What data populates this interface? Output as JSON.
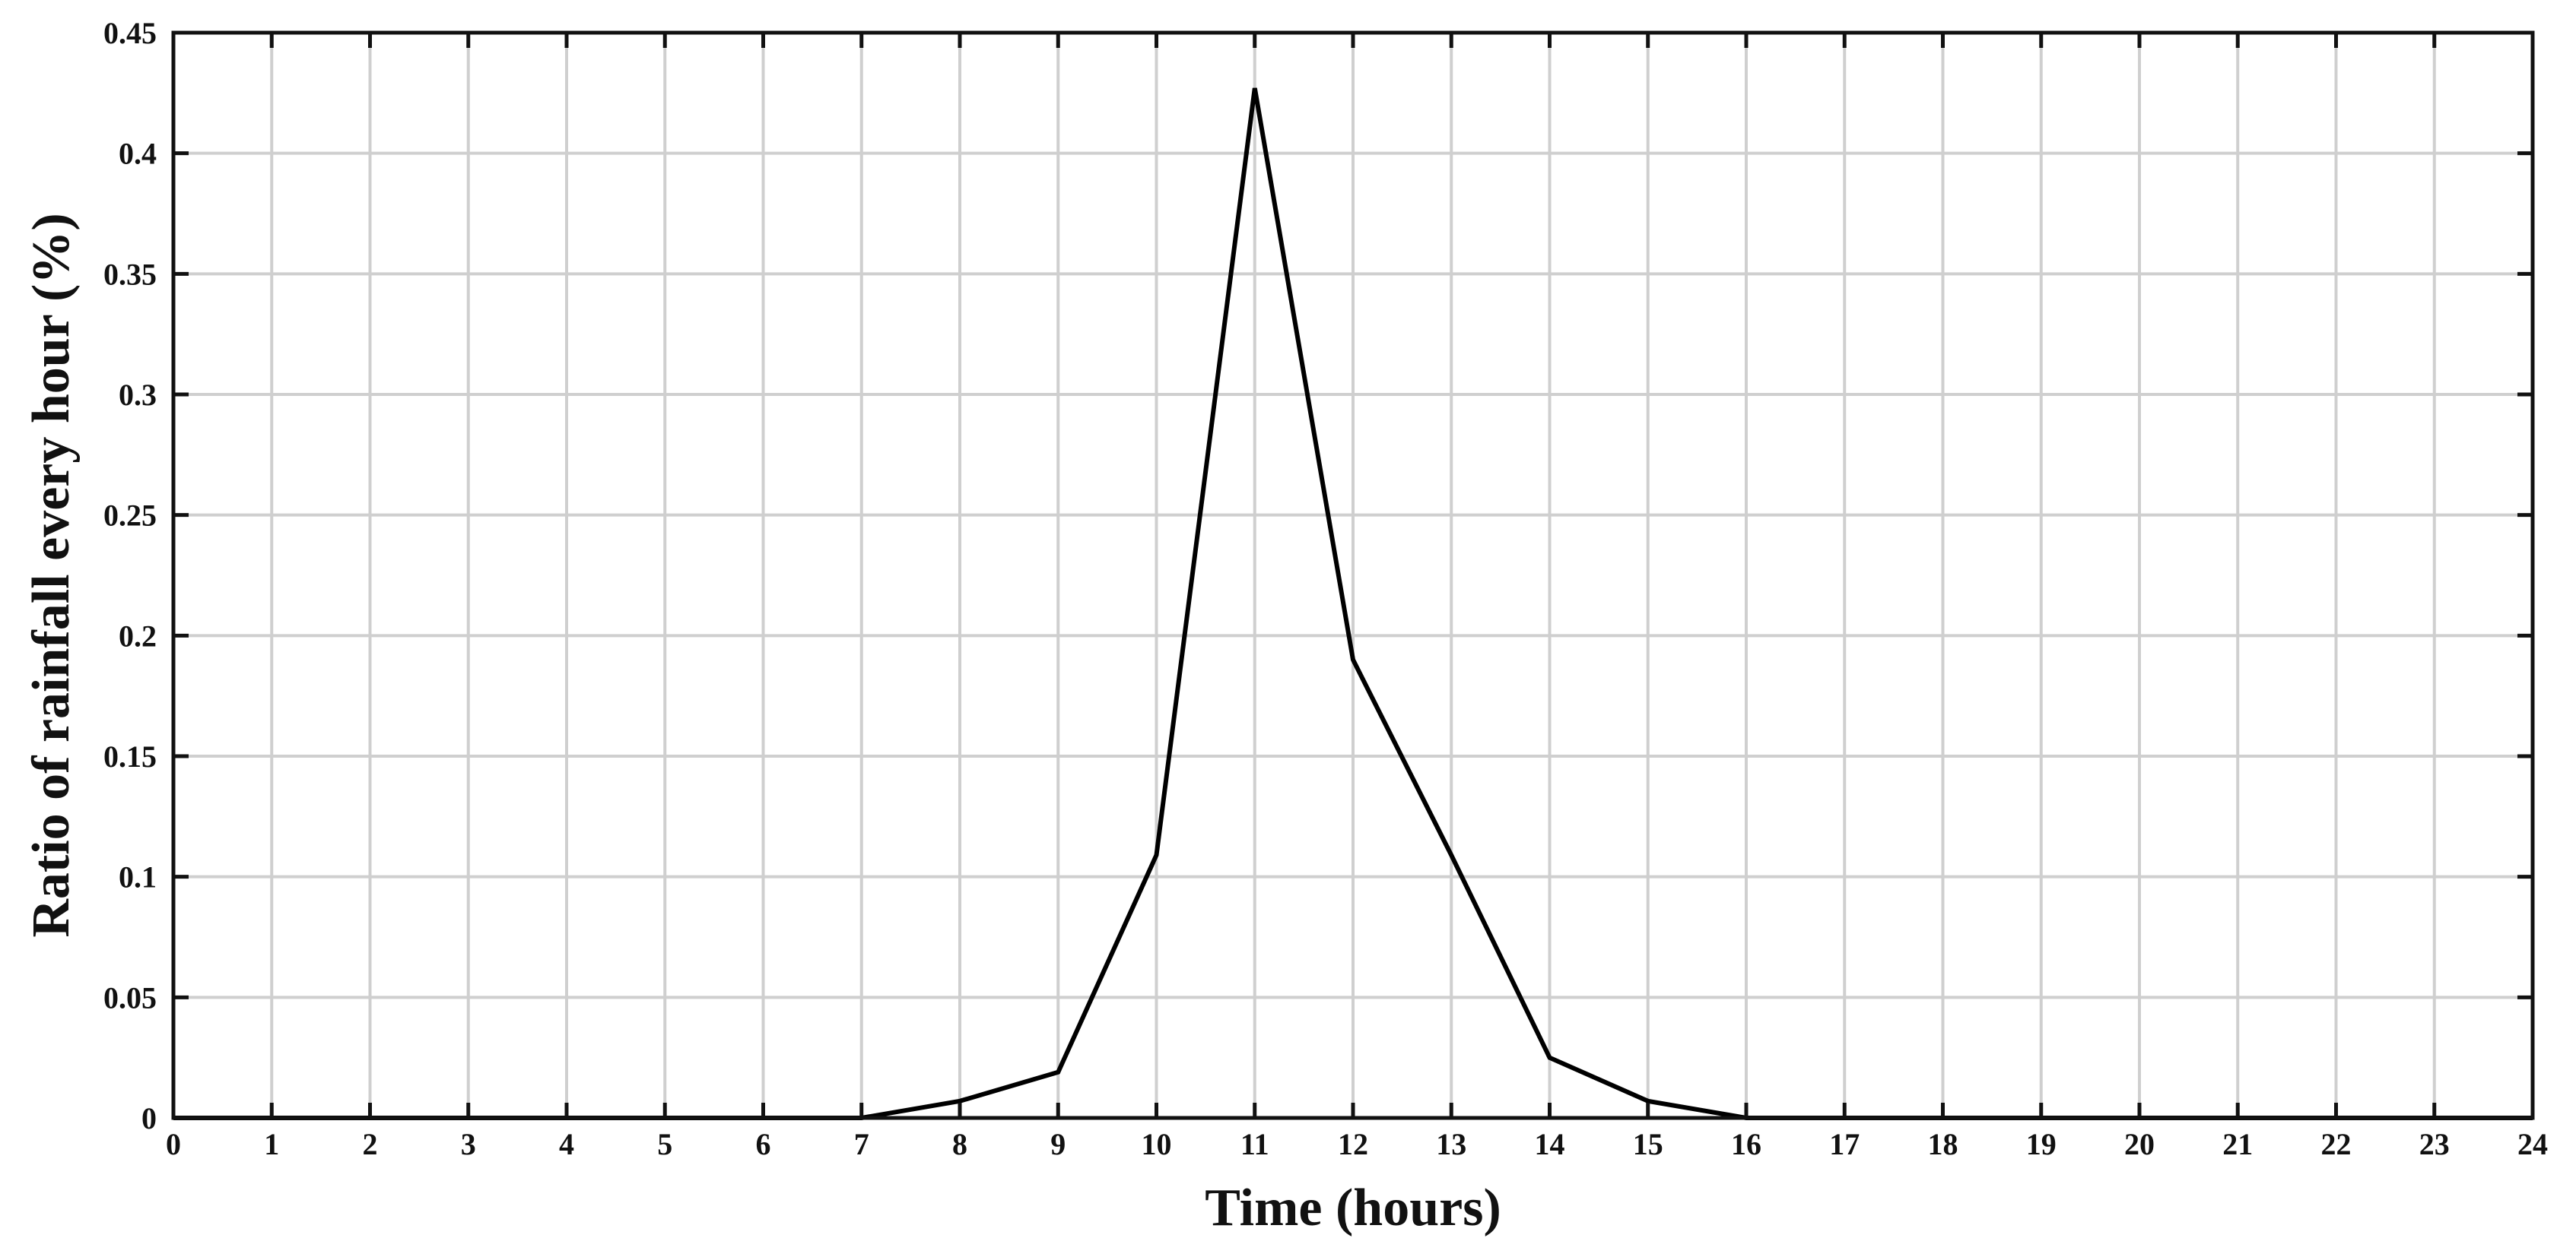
{
  "chart_data": {
    "type": "line",
    "xlabel": "Time (hours)",
    "ylabel": "Ratio of rainfall every hour (%)",
    "xlim": [
      0,
      24
    ],
    "ylim": [
      0,
      0.45
    ],
    "x_ticks": [
      "0",
      "1",
      "2",
      "3",
      "4",
      "5",
      "6",
      "7",
      "8",
      "9",
      "10",
      "11",
      "12",
      "13",
      "14",
      "15",
      "16",
      "17",
      "18",
      "19",
      "20",
      "21",
      "22",
      "23",
      "24"
    ],
    "y_ticks": [
      "0",
      "0.05",
      "0.1",
      "0.15",
      "0.2",
      "0.25",
      "0.3",
      "0.35",
      "0.4",
      "0.45"
    ],
    "grid": true,
    "series": [
      {
        "x": [
          0,
          1,
          2,
          3,
          4,
          5,
          6,
          7,
          8,
          9,
          10,
          11,
          12,
          13,
          14,
          15,
          16,
          17,
          18,
          19,
          20,
          21,
          22,
          23,
          24
        ],
        "y": [
          0,
          0,
          0,
          0,
          0,
          0,
          0,
          0,
          0.007,
          0.019,
          0.109,
          0.427,
          0.19,
          0.109,
          0.025,
          0.007,
          0,
          0,
          0,
          0,
          0,
          0,
          0,
          0,
          0
        ]
      }
    ]
  }
}
